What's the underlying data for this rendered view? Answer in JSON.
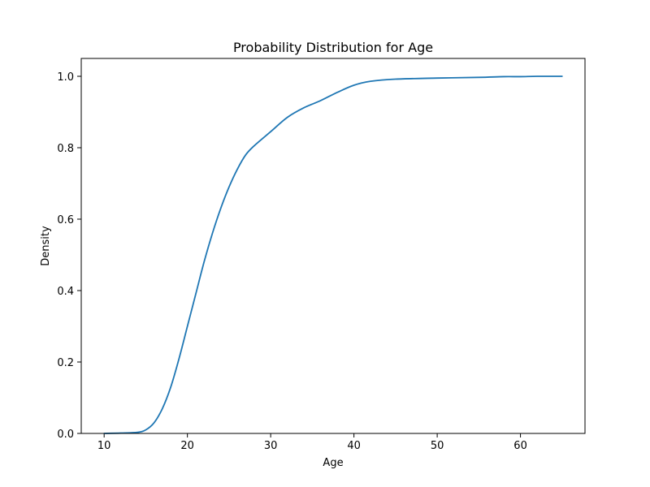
{
  "chart_data": {
    "type": "line",
    "title": "Probability Distribution for Age",
    "xlabel": "Age",
    "ylabel": "Density",
    "xlim": [
      7.25,
      67.75
    ],
    "ylim": [
      0,
      1.05
    ],
    "xticks": [
      10,
      20,
      30,
      40,
      50,
      60
    ],
    "yticks": [
      0.0,
      0.2,
      0.4,
      0.6,
      0.8,
      1.0
    ],
    "xtick_labels": [
      "10",
      "20",
      "30",
      "40",
      "50",
      "60"
    ],
    "ytick_labels": [
      "0.0",
      "0.2",
      "0.4",
      "0.6",
      "0.8",
      "1.0"
    ],
    "grid": false,
    "legend": "none",
    "series": [
      {
        "color": "#1f77b4",
        "x": [
          10,
          12,
          14,
          15,
          16,
          17,
          18,
          19,
          20,
          21,
          22,
          23,
          24,
          25,
          26,
          27,
          28,
          30,
          32,
          34,
          36,
          38,
          40,
          42,
          45,
          50,
          55,
          58,
          60,
          62,
          65
        ],
        "y": [
          0.0,
          0.001,
          0.003,
          0.01,
          0.03,
          0.07,
          0.13,
          0.21,
          0.3,
          0.39,
          0.48,
          0.56,
          0.63,
          0.69,
          0.74,
          0.78,
          0.805,
          0.845,
          0.885,
          0.912,
          0.932,
          0.955,
          0.975,
          0.986,
          0.992,
          0.995,
          0.997,
          0.999,
          0.999,
          1.0,
          1.0
        ]
      }
    ]
  }
}
